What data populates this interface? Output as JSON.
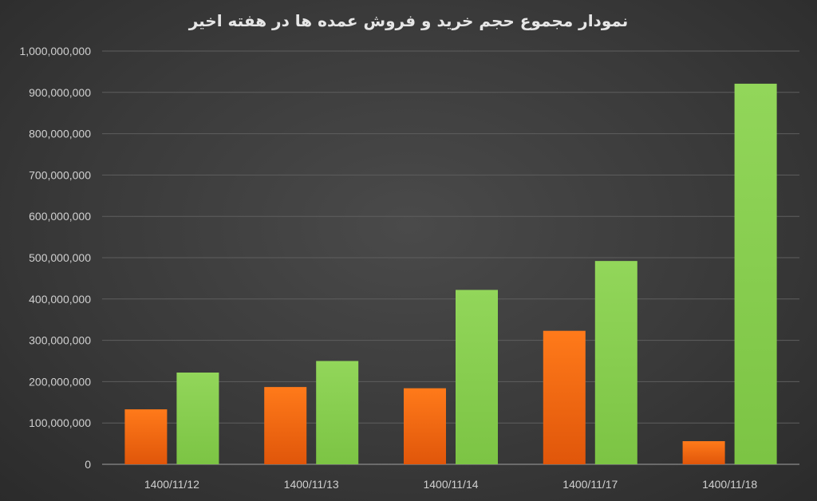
{
  "chart_data": {
    "type": "bar",
    "title": "نمودار مجموع حجم خرید و فروش عمده ها در هفته اخیر",
    "xlabel": "",
    "ylabel": "",
    "categories": [
      "1400/11/12",
      "1400/11/13",
      "1400/11/14",
      "1400/11/17",
      "1400/11/18"
    ],
    "series": [
      {
        "color": "#f26b0f",
        "values": [
          133000000,
          187000000,
          184000000,
          323000000,
          56000000
        ]
      },
      {
        "color": "#8dd14f",
        "values": [
          222000000,
          250000000,
          422000000,
          492000000,
          921000000
        ]
      }
    ],
    "ylim": [
      0,
      1000000000
    ],
    "yticks": [
      0,
      100000000,
      200000000,
      300000000,
      400000000,
      500000000,
      600000000,
      700000000,
      800000000,
      900000000,
      1000000000
    ],
    "ytick_labels": [
      "0",
      "100,000,000",
      "200,000,000",
      "300,000,000",
      "400,000,000",
      "500,000,000",
      "600,000,000",
      "700,000,000",
      "800,000,000",
      "900,000,000",
      "1,000,000,000"
    ],
    "grid": true,
    "legend": "none"
  }
}
